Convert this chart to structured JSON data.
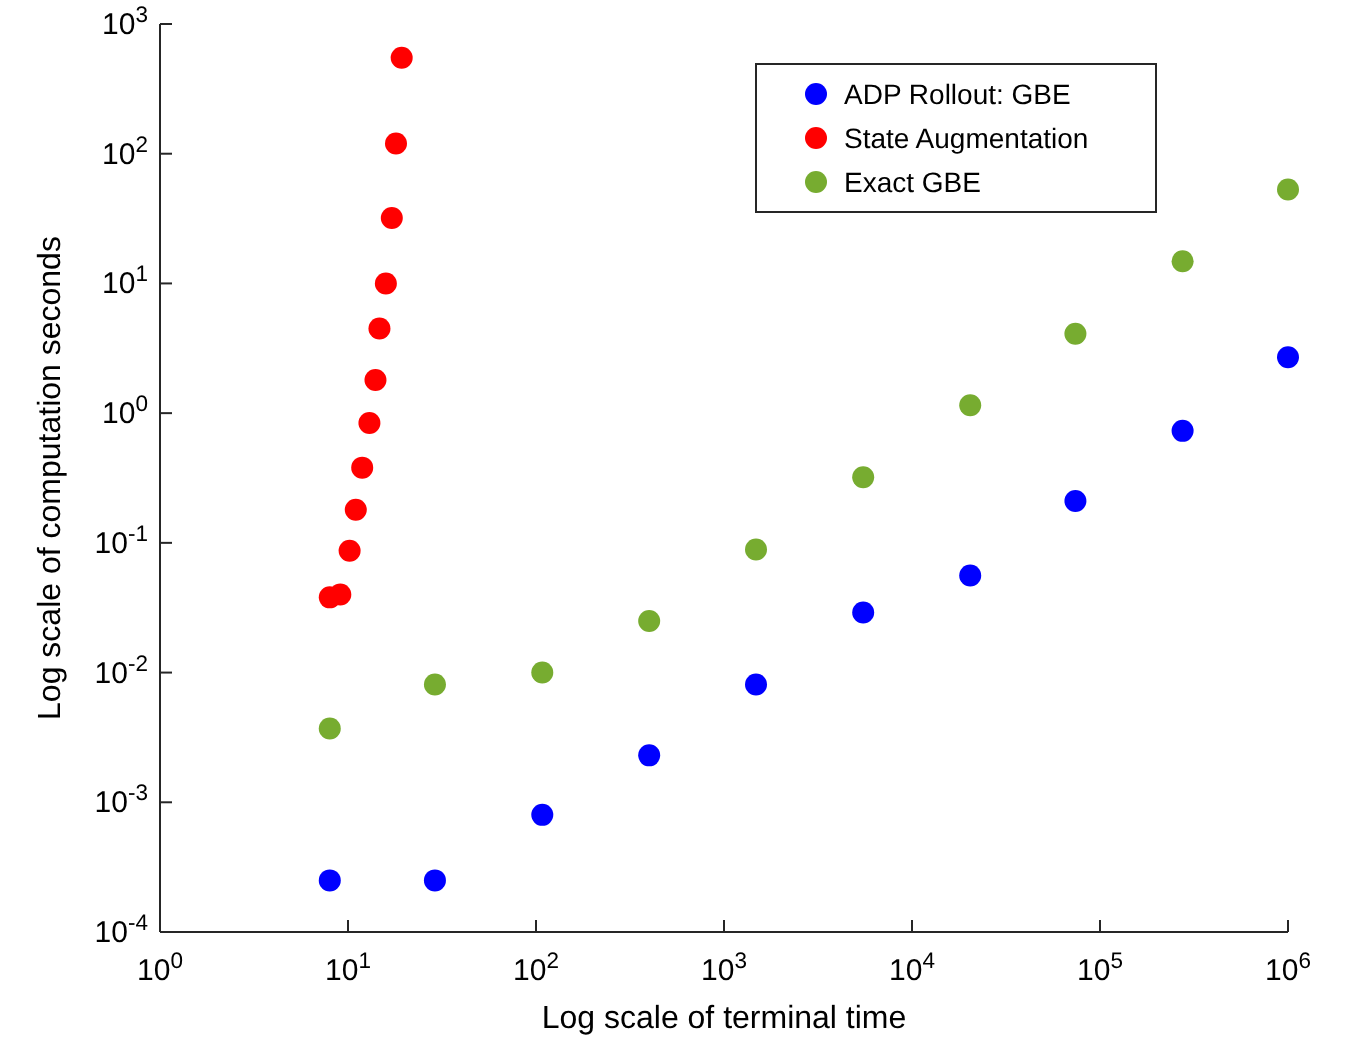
{
  "chart_data": {
    "type": "scatter",
    "xlabel": "Log scale of terminal time",
    "ylabel": "Log scale of computation seconds",
    "log": "xy",
    "marker": "circle",
    "legend": "top right",
    "grid": false,
    "xlim": [
      1,
      1000000
    ],
    "ylim": [
      0.0001,
      1000
    ],
    "xticks": [
      {
        "value": 1,
        "label": "10$^{0}$"
      },
      {
        "value": 10,
        "label": "10$^{1}$"
      },
      {
        "value": 100,
        "label": "10$^{2}$"
      },
      {
        "value": 1000,
        "label": "10$^{3}$"
      },
      {
        "value": 10000,
        "label": "10$^{4}$"
      },
      {
        "value": 100000,
        "label": "10$^{5}$"
      },
      {
        "value": 1000000,
        "label": "10$^{6}$"
      }
    ],
    "yticks": [
      {
        "value": 0.0001,
        "label": "10$^{-4}$"
      },
      {
        "value": 0.001,
        "label": "10$^{-3}$"
      },
      {
        "value": 0.01,
        "label": "10$^{-2}$"
      },
      {
        "value": 0.1,
        "label": "10$^{-1}$"
      },
      {
        "value": 1,
        "label": "10$^{0}$"
      },
      {
        "value": 10,
        "label": "10$^{1}$"
      },
      {
        "value": 100,
        "label": "10$^{2}$"
      },
      {
        "value": 1000,
        "label": "10$^{3}$"
      }
    ],
    "series": [
      {
        "name": "ADP Rollout: GBE",
        "color": "#0000ff",
        "x": [
          8,
          29,
          108,
          400,
          1480,
          5500,
          20400,
          74000,
          275000,
          1000000
        ],
        "values": [
          0.00025,
          0.00025,
          0.0008,
          0.0023,
          0.0081,
          0.029,
          0.056,
          0.21,
          0.73,
          2.7
        ]
      },
      {
        "name": "State Augmentation",
        "color": "#ff0000",
        "x": [
          8,
          9.1,
          10.2,
          11,
          11.9,
          13,
          14,
          14.7,
          15.9,
          17.1,
          18,
          19.3
        ],
        "values": [
          0.038,
          0.04,
          0.087,
          0.18,
          0.38,
          0.84,
          1.8,
          4.5,
          10,
          32,
          120,
          550
        ]
      },
      {
        "name": "Exact GBE",
        "color": "#77ac30",
        "x": [
          8,
          29,
          108,
          400,
          1480,
          5500,
          20400,
          74000,
          275000,
          1000000
        ],
        "values": [
          0.0037,
          0.0081,
          0.01,
          0.025,
          0.089,
          0.32,
          1.15,
          4.1,
          14.8,
          53
        ]
      }
    ]
  }
}
